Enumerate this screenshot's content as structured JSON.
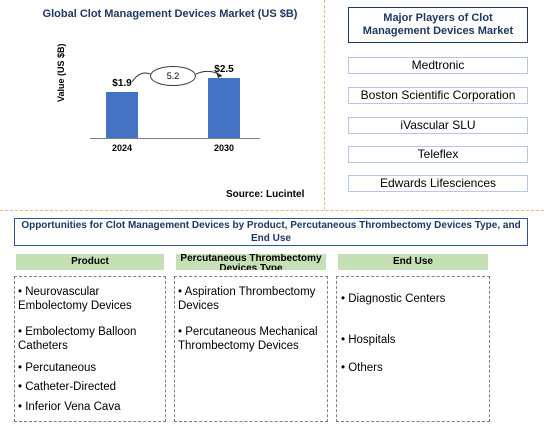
{
  "chart_data": {
    "type": "bar",
    "title": "Global Clot Management Devices Market (US $B)",
    "ylabel": "Value (US $B)",
    "categories": [
      "2024",
      "2030"
    ],
    "values": [
      1.9,
      2.5
    ],
    "value_labels": [
      "$1.9",
      "$2.5"
    ],
    "growth_label": "5.2",
    "bar_color": "#4472c4",
    "source": "Source: Lucintel"
  },
  "players": {
    "title": "Major Players of Clot Management Devices Market",
    "items": [
      "Medtronic",
      "Boston Scientific Corporation",
      "iVascular SLU",
      "Teleflex",
      "Edwards Lifesciences"
    ]
  },
  "opportunities": {
    "title": "Opportunities for Clot Management Devices by Product, Percutaneous Thrombectomy Devices Type, and End Use",
    "columns": [
      {
        "header": "Product",
        "items": [
          "• Neurovascular Embolectomy Devices",
          "• Embolectomy Balloon Catheters",
          "• Percutaneous",
          "• Catheter-Directed",
          "• Inferior Vena Cava"
        ]
      },
      {
        "header": "Percutaneous Thrombectomy Devices Type",
        "items": [
          "• Aspiration Thrombectomy Devices",
          "• Percutaneous Mechanical Thrombectomy Devices"
        ]
      },
      {
        "header": "End Use",
        "items": [
          "• Diagnostic Centers",
          "• Hospitals",
          "• Others"
        ]
      }
    ]
  },
  "colors": {
    "accent_dark_blue": "#1f3864",
    "header_green": "#c5e0b4",
    "separator_orange": "#f4b183"
  }
}
